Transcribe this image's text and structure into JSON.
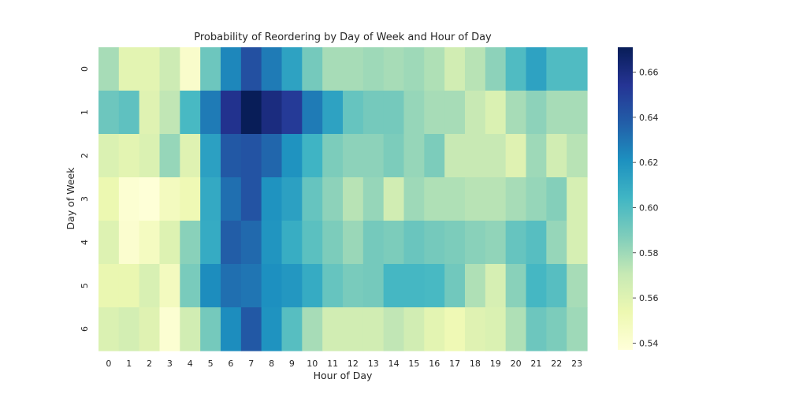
{
  "chart_data": {
    "type": "heatmap",
    "title": "Probability of Reordering by Day of Week and Hour of Day",
    "xlabel": "Hour of Day",
    "ylabel": "Day of Week",
    "x_categories": [
      "0",
      "1",
      "2",
      "3",
      "4",
      "5",
      "6",
      "7",
      "8",
      "9",
      "10",
      "11",
      "12",
      "13",
      "14",
      "15",
      "16",
      "17",
      "18",
      "19",
      "20",
      "21",
      "22",
      "23"
    ],
    "y_categories": [
      "0",
      "1",
      "2",
      "3",
      "4",
      "5",
      "6"
    ],
    "values": [
      [
        0.578,
        0.558,
        0.558,
        0.568,
        0.543,
        0.592,
        0.624,
        0.643,
        0.628,
        0.613,
        0.59,
        0.578,
        0.578,
        0.58,
        0.578,
        0.58,
        0.576,
        0.566,
        0.574,
        0.584,
        0.6,
        0.613,
        0.6,
        0.6
      ],
      [
        0.592,
        0.596,
        0.56,
        0.572,
        0.602,
        0.628,
        0.656,
        0.671,
        0.66,
        0.652,
        0.628,
        0.613,
        0.594,
        0.59,
        0.59,
        0.582,
        0.578,
        0.578,
        0.57,
        0.562,
        0.578,
        0.584,
        0.578,
        0.578
      ],
      [
        0.562,
        0.558,
        0.562,
        0.582,
        0.56,
        0.614,
        0.64,
        0.642,
        0.635,
        0.62,
        0.605,
        0.588,
        0.584,
        0.584,
        0.588,
        0.582,
        0.588,
        0.57,
        0.57,
        0.57,
        0.56,
        0.58,
        0.566,
        0.574
      ],
      [
        0.554,
        0.54,
        0.538,
        0.548,
        0.552,
        0.61,
        0.632,
        0.642,
        0.62,
        0.614,
        0.594,
        0.584,
        0.574,
        0.582,
        0.566,
        0.58,
        0.576,
        0.576,
        0.574,
        0.574,
        0.578,
        0.582,
        0.586,
        0.564
      ],
      [
        0.561,
        0.541,
        0.547,
        0.561,
        0.585,
        0.609,
        0.638,
        0.634,
        0.619,
        0.608,
        0.597,
        0.588,
        0.581,
        0.59,
        0.588,
        0.593,
        0.59,
        0.588,
        0.585,
        0.583,
        0.594,
        0.598,
        0.582,
        0.564
      ],
      [
        0.555,
        0.555,
        0.563,
        0.548,
        0.589,
        0.622,
        0.632,
        0.63,
        0.621,
        0.618,
        0.609,
        0.594,
        0.589,
        0.59,
        0.603,
        0.603,
        0.602,
        0.591,
        0.576,
        0.564,
        0.585,
        0.603,
        0.598,
        0.578
      ],
      [
        0.562,
        0.565,
        0.56,
        0.54,
        0.566,
        0.59,
        0.622,
        0.64,
        0.62,
        0.598,
        0.578,
        0.566,
        0.566,
        0.566,
        0.572,
        0.566,
        0.558,
        0.552,
        0.56,
        0.562,
        0.576,
        0.592,
        0.588,
        0.58
      ]
    ],
    "colorbar": {
      "min": 0.537,
      "max": 0.671,
      "ticks": [
        0.54,
        0.56,
        0.58,
        0.6,
        0.62,
        0.64,
        0.66
      ],
      "tick_labels": [
        "0.54",
        "0.56",
        "0.58",
        "0.60",
        "0.62",
        "0.64",
        "0.66"
      ],
      "colormap": "YlGnBu",
      "stops": [
        "#ffffd9",
        "#edf8b1",
        "#c7e9b4",
        "#7fcdbb",
        "#41b6c4",
        "#1d91c0",
        "#225ea8",
        "#253494",
        "#081d58"
      ]
    },
    "grid": false,
    "legend": "right"
  }
}
